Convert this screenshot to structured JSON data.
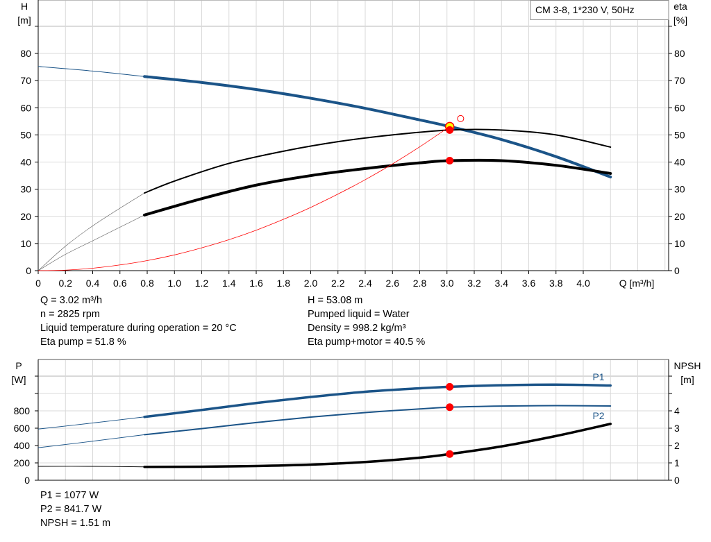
{
  "colors": {
    "blue": "#1b5488",
    "black": "#000000",
    "red": "#ff0000",
    "marker_fill": "#ff0000",
    "op_fill": "#ffff00",
    "grid": "#d9d9d9"
  },
  "legend_box": "CM 3-8, 1*230 V, 50Hz",
  "info_left": [
    "Q = 3.02 m³/h",
    "n = 2825 rpm",
    "Liquid temperature during operation = 20 °C",
    "Eta pump = 51.8 %"
  ],
  "info_right": [
    "H = 53.08 m",
    "Pumped liquid = Water",
    "Density = 998.2 kg/m³",
    "Eta pump+motor = 40.5 %"
  ],
  "info_bottom": [
    "P1 = 1077 W",
    "P2 = 841.7 W",
    "NPSH = 1.51 m"
  ],
  "chart_data": [
    {
      "type": "line",
      "ylabel": "H",
      "yunit": "[m]",
      "y2label": "eta",
      "y2unit": "[%]",
      "xlabel": "Q [m³/h]",
      "xlim": [
        0,
        4.6
      ],
      "ylim": [
        0,
        90
      ],
      "y2lim": [
        0,
        90
      ],
      "xticks": [
        "0",
        "0.2",
        "0.4",
        "0.6",
        "0.8",
        "1.0",
        "1.2",
        "1.4",
        "1.6",
        "1.8",
        "2.0",
        "2.2",
        "2.4",
        "2.6",
        "2.8",
        "3.0",
        "3.2",
        "3.4",
        "3.6",
        "3.8",
        "4.0"
      ],
      "yticks": [
        0,
        10,
        20,
        30,
        40,
        50,
        60,
        70,
        80
      ],
      "grid": true,
      "operating_point": {
        "Q": 3.02,
        "H": 53.08,
        "eta_pump": 51.8,
        "eta_pump_motor": 40.5
      },
      "series": [
        {
          "key": "H",
          "color": "blue",
          "thin": {
            "x": [
              0,
              0.4,
              0.78
            ],
            "y": [
              75.2,
              73.5,
              71.5
            ]
          },
          "x": [
            0.78,
            1.2,
            1.6,
            2.0,
            2.4,
            2.8,
            3.02,
            3.4,
            3.8,
            4.2
          ],
          "y": [
            71.5,
            69.3,
            66.7,
            63.5,
            59.8,
            55.5,
            53.08,
            48.3,
            42.0,
            34.5
          ]
        },
        {
          "key": "eta_pump",
          "color": "black",
          "thin": {
            "x": [
              0,
              0.2,
              0.4,
              0.6,
              0.78
            ],
            "y": [
              0,
              9,
              16.5,
              23,
              28.6
            ]
          },
          "x": [
            0.78,
            1.0,
            1.4,
            1.8,
            2.2,
            2.6,
            3.02,
            3.4,
            3.8,
            4.2
          ],
          "y": [
            28.6,
            33,
            39.5,
            44,
            47.5,
            50,
            51.8,
            51.8,
            50,
            45.5
          ]
        },
        {
          "key": "eta_pump_motor",
          "color": "black",
          "heavy": true,
          "thin": {
            "x": [
              0,
              0.2,
              0.4,
              0.6,
              0.78
            ],
            "y": [
              0,
              6,
              11,
              16,
              20.5
            ]
          },
          "x": [
            0.78,
            1.2,
            1.6,
            2.0,
            2.4,
            2.8,
            3.02,
            3.4,
            3.8,
            4.2
          ],
          "y": [
            20.5,
            26.5,
            31.5,
            35,
            37.6,
            39.7,
            40.5,
            40.5,
            38.8,
            35.8
          ]
        },
        {
          "key": "system",
          "color": "red",
          "x": [
            0,
            0.2,
            0.4,
            0.6,
            0.8,
            1.0,
            1.2,
            1.4,
            1.6,
            1.8,
            2.0,
            2.2,
            2.4,
            2.6,
            2.8,
            3.02
          ],
          "y": [
            0,
            0.2,
            0.9,
            2.1,
            3.7,
            5.8,
            8.4,
            11.4,
            14.9,
            18.9,
            23.3,
            28.2,
            33.5,
            39.3,
            45.6,
            53.08
          ]
        }
      ],
      "extra_marker": {
        "Q": 3.1,
        "H": 56
      }
    },
    {
      "type": "line",
      "ylabel": "P",
      "yunit": "[W]",
      "y2label": "NPSH",
      "y2unit": "[m]",
      "xlim": [
        0,
        4.6
      ],
      "ylim": [
        0,
        1400
      ],
      "y2lim": [
        0,
        7
      ],
      "yticks": [
        0,
        200,
        400,
        600,
        800
      ],
      "y2ticks": [
        0,
        1,
        2,
        3,
        4
      ],
      "grid": true,
      "series": [
        {
          "key": "P1",
          "name": "P1",
          "color": "blue",
          "heavy": true,
          "axis": "left",
          "thin": {
            "x": [
              0,
              0.4,
              0.78
            ],
            "y": [
              590,
              660,
              730
            ]
          },
          "x": [
            0.78,
            1.2,
            1.6,
            2.0,
            2.4,
            2.8,
            3.02,
            3.4,
            3.8,
            4.2
          ],
          "y": [
            730,
            810,
            890,
            960,
            1020,
            1060,
            1077,
            1095,
            1102,
            1092
          ]
        },
        {
          "key": "P2",
          "name": "P2",
          "color": "blue",
          "axis": "left",
          "thin": {
            "x": [
              0,
              0.4,
              0.78
            ],
            "y": [
              375,
              450,
              525
            ]
          },
          "x": [
            0.78,
            1.2,
            1.6,
            2.0,
            2.4,
            2.8,
            3.02,
            3.4,
            3.8,
            4.2
          ],
          "y": [
            525,
            595,
            665,
            728,
            780,
            822,
            841.7,
            855,
            860,
            856
          ]
        },
        {
          "key": "NPSH",
          "color": "black",
          "heavy": true,
          "axis": "right",
          "thin": {
            "x": [
              0,
              0.4,
              0.78
            ],
            "y": [
              0.8,
              0.8,
              0.77
            ]
          },
          "x": [
            0.78,
            1.2,
            1.6,
            2.0,
            2.4,
            2.8,
            3.02,
            3.4,
            3.8,
            4.2
          ],
          "y": [
            0.77,
            0.78,
            0.82,
            0.9,
            1.05,
            1.3,
            1.51,
            1.95,
            2.55,
            3.25
          ]
        }
      ],
      "markers": {
        "P1": 1077,
        "P2": 841.7,
        "NPSH": 1.51
      }
    }
  ]
}
